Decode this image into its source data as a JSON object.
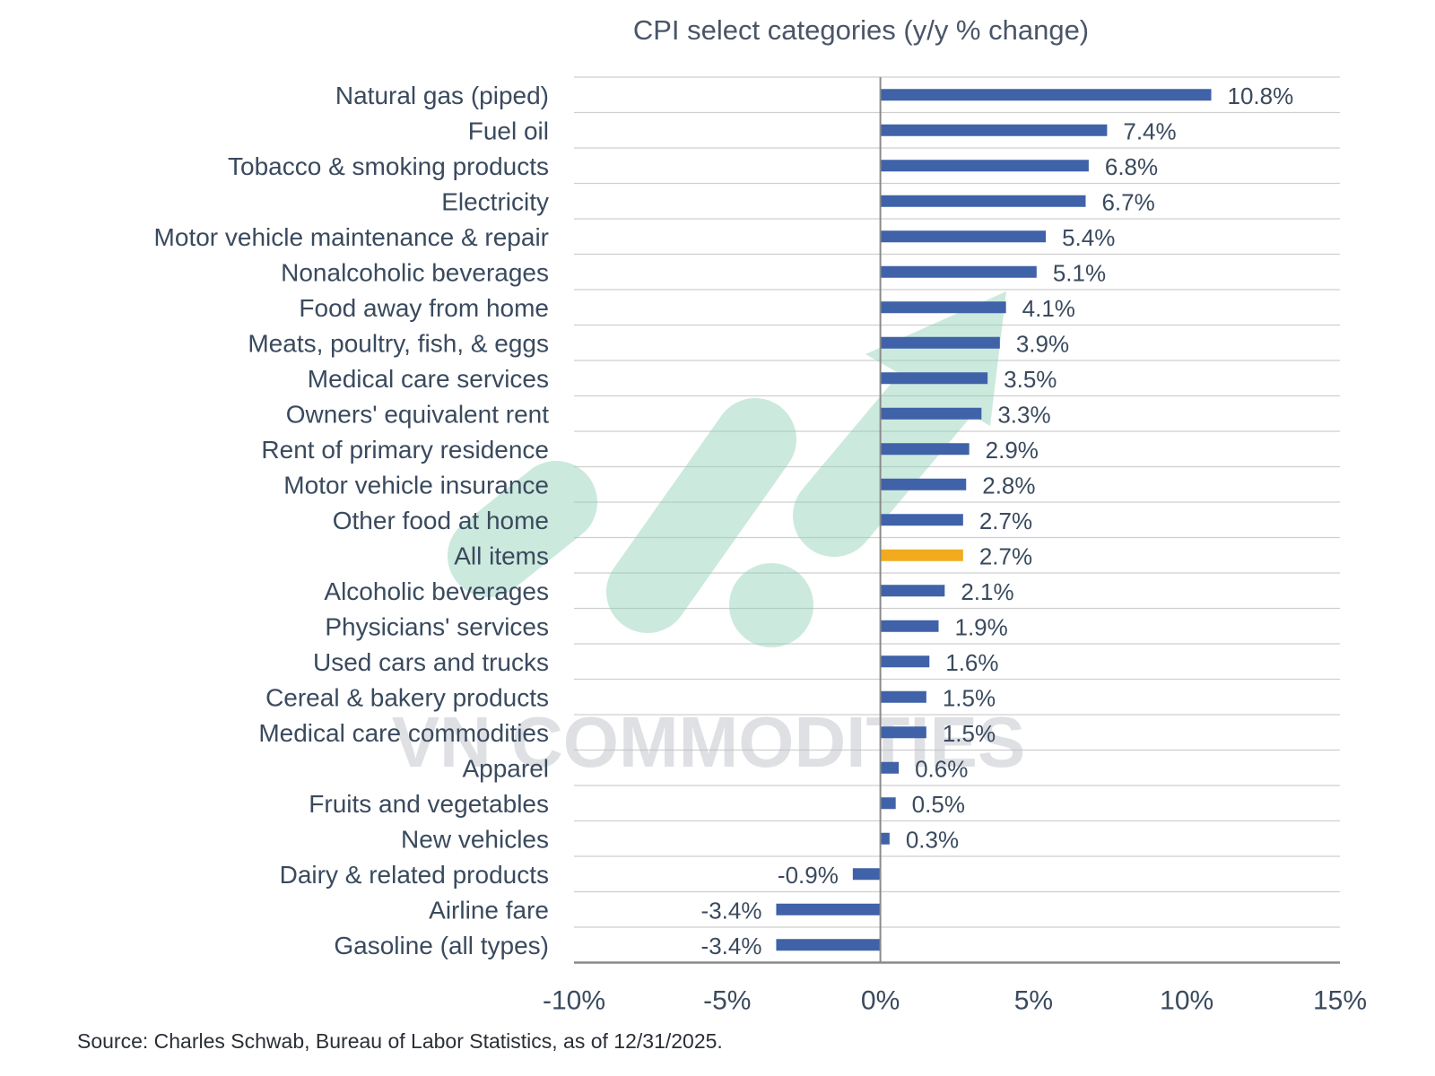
{
  "chart_data": {
    "type": "bar",
    "orientation": "horizontal",
    "title": "CPI select categories (y/y % change)",
    "xlabel": "",
    "ylabel": "",
    "xlim": [
      -10,
      15
    ],
    "x_ticks": [
      "-10%",
      "-5%",
      "0%",
      "5%",
      "10%",
      "15%"
    ],
    "x_tick_values": [
      -10,
      -5,
      0,
      5,
      10,
      15
    ],
    "grid": "horizontal",
    "categories": [
      "Natural gas (piped)",
      "Fuel oil",
      "Tobacco & smoking products",
      "Electricity",
      "Motor vehicle maintenance & repair",
      "Nonalcoholic beverages",
      "Food away from home",
      "Meats, poultry, fish, & eggs",
      "Medical care services",
      "Owners' equivalent rent",
      "Rent of primary residence",
      "Motor vehicle insurance",
      "Other food at home",
      "All items",
      "Alcoholic beverages",
      "Physicians' services",
      "Used cars and trucks",
      "Cereal & bakery products",
      "Medical care commodities",
      "Apparel",
      "Fruits and vegetables",
      "New vehicles",
      "Dairy & related products",
      "Airline fare",
      "Gasoline (all types)"
    ],
    "values": [
      10.8,
      7.4,
      6.8,
      6.7,
      5.4,
      5.1,
      4.1,
      3.9,
      3.5,
      3.3,
      2.9,
      2.8,
      2.7,
      2.7,
      2.1,
      1.9,
      1.6,
      1.5,
      1.5,
      0.6,
      0.5,
      0.3,
      -0.9,
      -3.4,
      -3.4
    ],
    "data_labels": [
      "10.8%",
      "7.4%",
      "6.8%",
      "6.7%",
      "5.4%",
      "5.1%",
      "4.1%",
      "3.9%",
      "3.5%",
      "3.3%",
      "2.9%",
      "2.8%",
      "2.7%",
      "2.7%",
      "2.1%",
      "1.9%",
      "1.6%",
      "1.5%",
      "1.5%",
      "0.6%",
      "0.5%",
      "0.3%",
      "-0.9%",
      "-3.4%",
      "-3.4%"
    ],
    "highlight_index": 13,
    "colors": {
      "bar": "#3f62a8",
      "highlight": "#f2ab1e",
      "grid": "#cfcfcf",
      "axis": "#8a8a8a",
      "label": "#3a4a5e",
      "watermark": "#8fd0b6"
    }
  },
  "source": "Source: Charles Schwab, Bureau of Labor Statistics, as of 12/31/2025.",
  "watermark": {
    "text": "VN COMMODITIES"
  }
}
